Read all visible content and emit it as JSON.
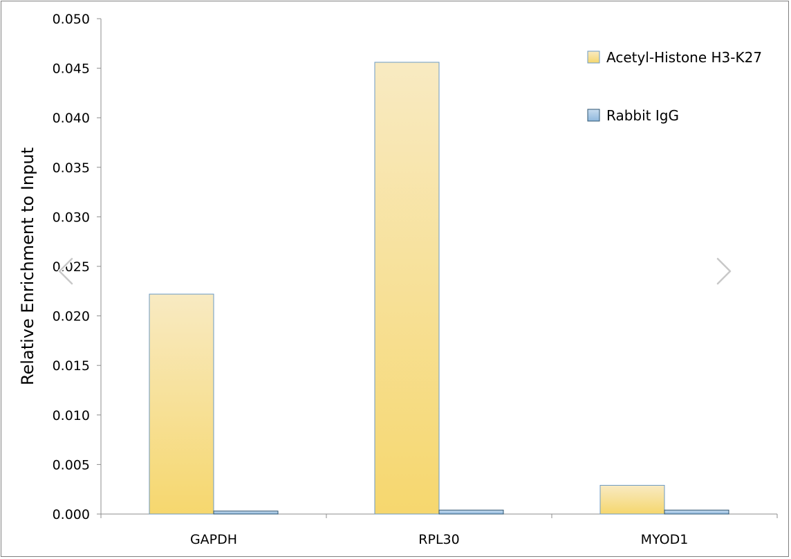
{
  "chart_data": {
    "type": "bar",
    "title": "",
    "xlabel": "",
    "ylabel": "Relative Enrichment to Input",
    "ylim": [
      0,
      0.05
    ],
    "yticks": [
      "0.000",
      "0.005",
      "0.010",
      "0.015",
      "0.020",
      "0.025",
      "0.030",
      "0.035",
      "0.040",
      "0.045",
      "0.050"
    ],
    "categories": [
      "GAPDH",
      "RPL30",
      "MYOD1"
    ],
    "series": [
      {
        "name": "Acetyl-Histone H3-K27",
        "values": [
          0.0222,
          0.0456,
          0.0029
        ],
        "color": "#f7d775"
      },
      {
        "name": "Rabbit IgG",
        "values": [
          0.0003,
          0.0004,
          0.0004
        ],
        "color": "#9dc3e6"
      }
    ],
    "legend_position": "top-right",
    "grid": false
  },
  "navigation": {
    "prev_icon": "chevron-left-icon",
    "next_icon": "chevron-right-icon"
  }
}
